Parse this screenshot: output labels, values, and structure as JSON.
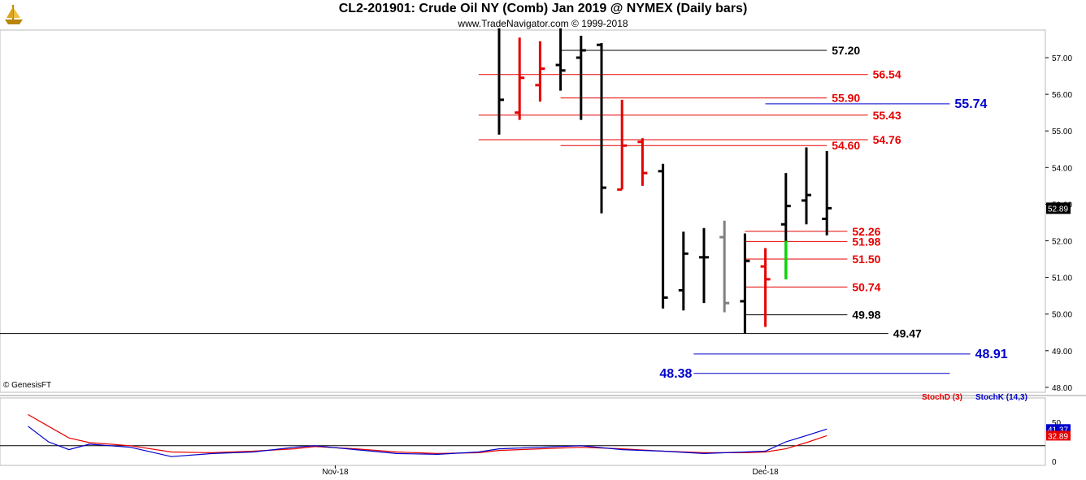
{
  "header": {
    "title": "CL2-201901:  Crude Oil NY (Comb) Jan 2019 @ NYMEX  (Daily bars)",
    "subtitle": "www.TradeNavigator.com © 1999-2018",
    "copyright": "© GenesisFT",
    "logo_icon": "sailing-ship-icon"
  },
  "chart_data": {
    "type": "bar",
    "style": "ohlc",
    "y_axis": {
      "ticks": [
        48.0,
        49.0,
        50.0,
        51.0,
        52.0,
        53.0,
        54.0,
        55.0,
        56.0,
        57.0
      ],
      "ylim": [
        47.7,
        57.8
      ],
      "side": "right"
    },
    "x_labels": [
      {
        "label": "Nov-18",
        "bar": -8
      },
      {
        "label": "Dec-18",
        "bar": 13
      }
    ],
    "last_price": "52.89",
    "bars": [
      {
        "o": null,
        "h": 57.8,
        "l": 54.9,
        "c": 55.85,
        "color": "#000000"
      },
      {
        "o": 55.5,
        "h": 57.55,
        "l": 55.3,
        "c": 56.45,
        "color": "#e60000"
      },
      {
        "o": 56.25,
        "h": 57.45,
        "l": 55.8,
        "c": 56.7,
        "color": "#e60000"
      },
      {
        "o": 56.8,
        "h": 57.8,
        "l": 56.1,
        "c": 56.65,
        "color": "#000000"
      },
      {
        "o": 57.0,
        "h": 57.6,
        "l": 55.3,
        "c": 57.2,
        "color": "#000000"
      },
      {
        "o": 57.35,
        "h": 57.4,
        "l": 52.75,
        "c": 53.45,
        "color": "#000000"
      },
      {
        "o": 53.4,
        "h": 55.85,
        "l": 53.4,
        "c": 54.6,
        "color": "#e60000"
      },
      {
        "o": 54.7,
        "h": 54.8,
        "l": 53.5,
        "c": 53.85,
        "color": "#e60000"
      },
      {
        "o": 53.9,
        "h": 54.1,
        "l": 50.15,
        "c": 50.45,
        "color": "#000000"
      },
      {
        "o": 50.65,
        "h": 52.25,
        "l": 50.1,
        "c": 51.65,
        "color": "#000000"
      },
      {
        "o": 51.55,
        "h": 52.35,
        "l": 50.3,
        "c": 51.55,
        "color": "#000000"
      },
      {
        "o": 52.1,
        "h": 52.55,
        "l": 50.05,
        "c": 50.3,
        "color": "#808080"
      },
      {
        "o": 50.35,
        "h": 52.2,
        "l": 49.47,
        "c": 51.45,
        "color": "#000000"
      },
      {
        "o": 51.3,
        "h": 51.8,
        "l": 49.65,
        "c": 50.95,
        "color": "#e60000"
      },
      {
        "o": 52.45,
        "h": 53.85,
        "l": 50.95,
        "c": 52.95,
        "color": "#000000"
      },
      {
        "o": 53.1,
        "h": 54.55,
        "l": 52.45,
        "c": 53.25,
        "color": "#000000"
      },
      {
        "o": 52.6,
        "h": 54.45,
        "l": 52.15,
        "c": 52.89,
        "color": "#000000"
      }
    ],
    "green_segment": {
      "bar": 14,
      "high": 52.0,
      "low": 50.95,
      "color": "#00dd00"
    },
    "levels": [
      {
        "value": 57.2,
        "label": "57.20",
        "color": "#000000",
        "x1": 3,
        "x2": 16
      },
      {
        "value": 56.54,
        "label": "56.54",
        "color": "#e60000",
        "x1": -1,
        "x2": 18
      },
      {
        "value": 55.9,
        "label": "55.90",
        "color": "#e60000",
        "x1": 3,
        "x2": 16
      },
      {
        "value": 55.74,
        "label": "55.74",
        "color": "#0000cc",
        "x1": 13,
        "x2": 22,
        "big": true
      },
      {
        "value": 55.43,
        "label": "55.43",
        "color": "#e60000",
        "x1": -1,
        "x2": 18
      },
      {
        "value": 54.76,
        "label": "54.76",
        "color": "#e60000",
        "x1": -1,
        "x2": 18
      },
      {
        "value": 54.6,
        "label": "54.60",
        "color": "#e60000",
        "x1": 3,
        "x2": 16
      },
      {
        "value": 52.26,
        "label": "52.26",
        "color": "#e60000",
        "x1": 12,
        "x2": 17
      },
      {
        "value": 51.98,
        "label": "51.98",
        "color": "#e60000",
        "x1": 12,
        "x2": 17
      },
      {
        "value": 51.5,
        "label": "51.50",
        "color": "#e60000",
        "x1": 12,
        "x2": 17
      },
      {
        "value": 50.74,
        "label": "50.74",
        "color": "#e60000",
        "x1": 12,
        "x2": 17
      },
      {
        "value": 49.98,
        "label": "49.98",
        "color": "#000000",
        "x1": 12,
        "x2": 17
      },
      {
        "value": 49.47,
        "label": "49.47",
        "color": "#000000",
        "x1": -25,
        "x2": 19
      },
      {
        "value": 48.91,
        "label": "48.91",
        "color": "#0000cc",
        "x1": 9.5,
        "x2": 23,
        "big": true
      },
      {
        "value": 48.38,
        "label": "48.38",
        "color": "#0000cc",
        "x1": 9.5,
        "x2": 22,
        "big": true,
        "label_left": true
      }
    ],
    "indicator": {
      "legend": [
        {
          "name": "StochD (3)",
          "color": "#e60000"
        },
        {
          "name": "StochK (14,3)",
          "color": "#0000cc"
        }
      ],
      "ticks": [
        0,
        50
      ],
      "ylim": [
        0,
        100
      ],
      "reference_level": 20,
      "stochD_label": "32.89",
      "stochK_label": "41.37",
      "stochK": [
        {
          "bar": -23,
          "v": 45
        },
        {
          "bar": -22,
          "v": 25
        },
        {
          "bar": -21,
          "v": 15
        },
        {
          "bar": -20,
          "v": 22
        },
        {
          "bar": -18,
          "v": 18
        },
        {
          "bar": -16,
          "v": 6
        },
        {
          "bar": -14,
          "v": 10
        },
        {
          "bar": -12,
          "v": 12
        },
        {
          "bar": -10,
          "v": 18
        },
        {
          "bar": -9,
          "v": 20
        },
        {
          "bar": -7,
          "v": 15
        },
        {
          "bar": -5,
          "v": 10
        },
        {
          "bar": -3,
          "v": 9
        },
        {
          "bar": -1,
          "v": 12
        },
        {
          "bar": 0,
          "v": 16
        },
        {
          "bar": 2,
          "v": 18
        },
        {
          "bar": 4,
          "v": 20
        },
        {
          "bar": 6,
          "v": 15
        },
        {
          "bar": 8,
          "v": 13
        },
        {
          "bar": 10,
          "v": 10
        },
        {
          "bar": 12,
          "v": 12
        },
        {
          "bar": 13,
          "v": 13
        },
        {
          "bar": 14,
          "v": 25
        },
        {
          "bar": 15,
          "v": 33
        },
        {
          "bar": 16,
          "v": 41.37
        }
      ],
      "stochD": [
        {
          "bar": -23,
          "v": 60
        },
        {
          "bar": -22,
          "v": 45
        },
        {
          "bar": -21,
          "v": 30
        },
        {
          "bar": -20,
          "v": 24
        },
        {
          "bar": -18,
          "v": 20
        },
        {
          "bar": -16,
          "v": 12
        },
        {
          "bar": -14,
          "v": 11
        },
        {
          "bar": -12,
          "v": 13
        },
        {
          "bar": -10,
          "v": 16
        },
        {
          "bar": -9,
          "v": 19
        },
        {
          "bar": -7,
          "v": 16
        },
        {
          "bar": -5,
          "v": 12
        },
        {
          "bar": -3,
          "v": 10
        },
        {
          "bar": -1,
          "v": 11
        },
        {
          "bar": 0,
          "v": 14
        },
        {
          "bar": 2,
          "v": 16
        },
        {
          "bar": 4,
          "v": 18
        },
        {
          "bar": 6,
          "v": 16
        },
        {
          "bar": 8,
          "v": 13
        },
        {
          "bar": 10,
          "v": 11
        },
        {
          "bar": 12,
          "v": 11
        },
        {
          "bar": 13,
          "v": 12
        },
        {
          "bar": 14,
          "v": 16
        },
        {
          "bar": 15,
          "v": 24
        },
        {
          "bar": 16,
          "v": 32.89
        }
      ]
    }
  }
}
